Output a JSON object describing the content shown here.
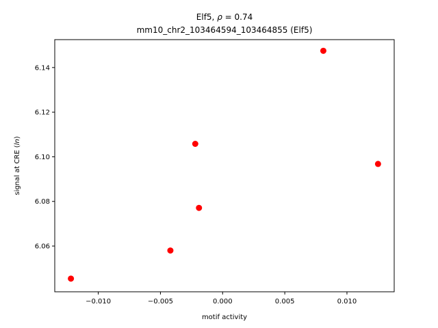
{
  "chart_data": {
    "type": "scatter",
    "title_line1_prefix": "Elf5, ",
    "title_rho": "ρ",
    "title_line1_suffix": " = 0.74",
    "title_line2": "mm10_chr2_103464594_103464855 (Elf5)",
    "xlabel": "motif activity",
    "ylabel_prefix": "signal at CRE (",
    "ylabel_ln": "ln",
    "ylabel_suffix": ")",
    "xlim": [
      -0.0135,
      0.0138
    ],
    "ylim": [
      6.0395,
      6.1525
    ],
    "xticks": [
      -0.01,
      -0.005,
      0.0,
      0.005,
      0.01
    ],
    "xtick_labels": [
      "−0.010",
      "−0.005",
      "0.000",
      "0.005",
      "0.010"
    ],
    "yticks": [
      6.06,
      6.08,
      6.1,
      6.12,
      6.14
    ],
    "ytick_labels": [
      "6.06",
      "6.08",
      "6.10",
      "6.12",
      "6.14"
    ],
    "marker_color": "#ff0000",
    "points": [
      {
        "x": -0.0122,
        "y": 6.0454
      },
      {
        "x": -0.0042,
        "y": 6.058
      },
      {
        "x": -0.0022,
        "y": 6.1058
      },
      {
        "x": -0.0019,
        "y": 6.0771
      },
      {
        "x": 0.0081,
        "y": 6.1475
      },
      {
        "x": 0.0125,
        "y": 6.0968
      }
    ],
    "grid": false
  }
}
